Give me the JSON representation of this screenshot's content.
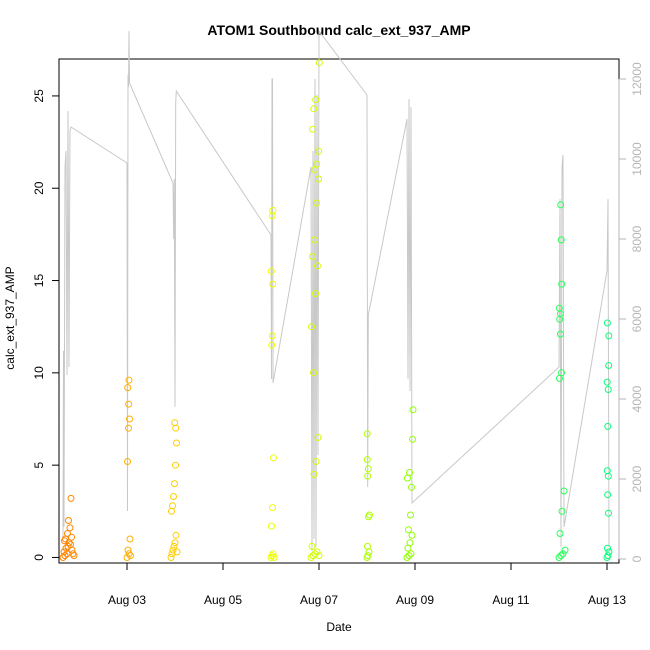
{
  "chart_data": {
    "type": "scatter",
    "title": "ATOM1 Southbound calc_ext_937_AMP",
    "xlabel": "Date",
    "ylabel": "calc_ext_937_AMP",
    "x_type": "date",
    "xlim": [
      "2024-08-01T14:00",
      "2024-08-13T06:00"
    ],
    "ylim": [
      -0.3,
      27.0
    ],
    "x_ticks": [
      "Aug 03",
      "Aug 05",
      "Aug 07",
      "Aug 09",
      "Aug 11",
      "Aug 13"
    ],
    "x_tick_dates": [
      "2024-08-03",
      "2024-08-05",
      "2024-08-07",
      "2024-08-09",
      "2024-08-11",
      "2024-08-13"
    ],
    "y_ticks": [
      0,
      5,
      10,
      15,
      20,
      25
    ],
    "y2_ticks": [
      0,
      2000,
      4000,
      6000,
      8000,
      10000,
      12000
    ],
    "y2lim": [
      -100,
      12500
    ],
    "grid": false,
    "legend": "none",
    "colors": {
      "line": "#c8c8c8",
      "right_axis": "#b5b5b5",
      "gradient": [
        "#ff7f00",
        "#ffff00",
        "#80ff00",
        "#00ff80"
      ]
    },
    "points": [
      {
        "x": "2024-08-01T16:00",
        "y": 0.0
      },
      {
        "x": "2024-08-01T17:00",
        "y": 0.1
      },
      {
        "x": "2024-08-01T18:00",
        "y": 0.2
      },
      {
        "x": "2024-08-01T16:30",
        "y": 0.3
      },
      {
        "x": "2024-08-01T17:30",
        "y": 0.5
      },
      {
        "x": "2024-08-01T18:30",
        "y": 0.6
      },
      {
        "x": "2024-08-01T19:00",
        "y": 0.8
      },
      {
        "x": "2024-08-01T17:15",
        "y": 1.0
      },
      {
        "x": "2024-08-01T18:15",
        "y": 1.3
      },
      {
        "x": "2024-08-01T19:30",
        "y": 1.6
      },
      {
        "x": "2024-08-01T18:45",
        "y": 2.0
      },
      {
        "x": "2024-08-01T20:00",
        "y": 3.2
      },
      {
        "x": "2024-08-01T20:30",
        "y": 0.4
      },
      {
        "x": "2024-08-01T21:00",
        "y": 0.2
      },
      {
        "x": "2024-08-01T19:45",
        "y": 0.7
      },
      {
        "x": "2024-08-01T16:45",
        "y": 0.9
      },
      {
        "x": "2024-08-01T21:30",
        "y": 0.1
      },
      {
        "x": "2024-08-01T20:15",
        "y": 1.1
      },
      {
        "x": "2024-08-03T00:00",
        "y": 0.0
      },
      {
        "x": "2024-08-03T01:00",
        "y": 0.2
      },
      {
        "x": "2024-08-03T00:30",
        "y": 0.4
      },
      {
        "x": "2024-08-03T01:30",
        "y": 1.0
      },
      {
        "x": "2024-08-03T00:15",
        "y": 5.2
      },
      {
        "x": "2024-08-03T00:45",
        "y": 7.0
      },
      {
        "x": "2024-08-03T01:15",
        "y": 7.5
      },
      {
        "x": "2024-08-03T00:50",
        "y": 8.3
      },
      {
        "x": "2024-08-03T00:20",
        "y": 9.2
      },
      {
        "x": "2024-08-03T01:00",
        "y": 9.6
      },
      {
        "x": "2024-08-03T01:45",
        "y": 0.1
      },
      {
        "x": "2024-08-03T22:00",
        "y": 0.0
      },
      {
        "x": "2024-08-03T22:30",
        "y": 0.2
      },
      {
        "x": "2024-08-03T23:00",
        "y": 0.4
      },
      {
        "x": "2024-08-03T23:30",
        "y": 0.6
      },
      {
        "x": "2024-08-04T00:00",
        "y": 0.8
      },
      {
        "x": "2024-08-04T00:30",
        "y": 1.2
      },
      {
        "x": "2024-08-03T22:15",
        "y": 2.5
      },
      {
        "x": "2024-08-03T22:45",
        "y": 2.8
      },
      {
        "x": "2024-08-03T23:15",
        "y": 3.3
      },
      {
        "x": "2024-08-03T23:45",
        "y": 4.0
      },
      {
        "x": "2024-08-04T00:15",
        "y": 5.0
      },
      {
        "x": "2024-08-04T00:45",
        "y": 6.2
      },
      {
        "x": "2024-08-04T00:20",
        "y": 7.0
      },
      {
        "x": "2024-08-03T23:50",
        "y": 7.3
      },
      {
        "x": "2024-08-04T01:00",
        "y": 0.3
      },
      {
        "x": "2024-08-06T00:00",
        "y": 0.0
      },
      {
        "x": "2024-08-06T00:30",
        "y": 0.1
      },
      {
        "x": "2024-08-06T01:00",
        "y": 0.2
      },
      {
        "x": "2024-08-06T00:15",
        "y": 1.7
      },
      {
        "x": "2024-08-06T00:45",
        "y": 2.7
      },
      {
        "x": "2024-08-06T01:15",
        "y": 5.4
      },
      {
        "x": "2024-08-06T00:20",
        "y": 11.5
      },
      {
        "x": "2024-08-06T00:40",
        "y": 12.0
      },
      {
        "x": "2024-08-06T00:50",
        "y": 14.8
      },
      {
        "x": "2024-08-06T00:10",
        "y": 15.5
      },
      {
        "x": "2024-08-06T00:35",
        "y": 18.5
      },
      {
        "x": "2024-08-06T00:55",
        "y": 18.8
      },
      {
        "x": "2024-08-06T01:30",
        "y": 0.0
      },
      {
        "x": "2024-08-06T20:00",
        "y": 0.0
      },
      {
        "x": "2024-08-06T21:00",
        "y": 0.1
      },
      {
        "x": "2024-08-06T22:00",
        "y": 0.2
      },
      {
        "x": "2024-08-06T23:00",
        "y": 0.3
      },
      {
        "x": "2024-08-07T00:00",
        "y": 0.1
      },
      {
        "x": "2024-08-06T20:30",
        "y": 0.6
      },
      {
        "x": "2024-08-06T21:30",
        "y": 4.5
      },
      {
        "x": "2024-08-06T22:30",
        "y": 5.2
      },
      {
        "x": "2024-08-06T23:30",
        "y": 6.5
      },
      {
        "x": "2024-08-06T21:15",
        "y": 10.0
      },
      {
        "x": "2024-08-06T20:15",
        "y": 12.5
      },
      {
        "x": "2024-08-06T22:15",
        "y": 14.3
      },
      {
        "x": "2024-08-06T23:15",
        "y": 15.8
      },
      {
        "x": "2024-08-06T20:45",
        "y": 16.3
      },
      {
        "x": "2024-08-06T21:45",
        "y": 17.2
      },
      {
        "x": "2024-08-06T22:45",
        "y": 19.2
      },
      {
        "x": "2024-08-06T23:45",
        "y": 20.5
      },
      {
        "x": "2024-08-06T21:50",
        "y": 21.0
      },
      {
        "x": "2024-08-06T22:50",
        "y": 21.3
      },
      {
        "x": "2024-08-06T20:50",
        "y": 23.2
      },
      {
        "x": "2024-08-06T21:20",
        "y": 24.3
      },
      {
        "x": "2024-08-06T22:20",
        "y": 24.8
      },
      {
        "x": "2024-08-07T00:10",
        "y": 26.8
      },
      {
        "x": "2024-08-06T23:50",
        "y": 22.0
      },
      {
        "x": "2024-08-08T00:00",
        "y": 0.0
      },
      {
        "x": "2024-08-08T00:30",
        "y": 0.1
      },
      {
        "x": "2024-08-08T01:00",
        "y": 0.3
      },
      {
        "x": "2024-08-08T00:15",
        "y": 0.6
      },
      {
        "x": "2024-08-08T00:45",
        "y": 2.2
      },
      {
        "x": "2024-08-08T01:15",
        "y": 2.3
      },
      {
        "x": "2024-08-08T00:20",
        "y": 4.4
      },
      {
        "x": "2024-08-08T00:40",
        "y": 4.8
      },
      {
        "x": "2024-08-08T00:10",
        "y": 5.3
      },
      {
        "x": "2024-08-08T00:05",
        "y": 6.7
      },
      {
        "x": "2024-08-08T20:00",
        "y": 0.0
      },
      {
        "x": "2024-08-08T21:00",
        "y": 0.1
      },
      {
        "x": "2024-08-08T22:00",
        "y": 0.2
      },
      {
        "x": "2024-08-08T20:30",
        "y": 0.5
      },
      {
        "x": "2024-08-08T21:30",
        "y": 0.8
      },
      {
        "x": "2024-08-08T22:30",
        "y": 1.2
      },
      {
        "x": "2024-08-08T20:45",
        "y": 1.5
      },
      {
        "x": "2024-08-08T21:45",
        "y": 2.3
      },
      {
        "x": "2024-08-08T22:15",
        "y": 3.8
      },
      {
        "x": "2024-08-08T20:15",
        "y": 4.3
      },
      {
        "x": "2024-08-08T21:15",
        "y": 4.6
      },
      {
        "x": "2024-08-08T22:45",
        "y": 6.4
      },
      {
        "x": "2024-08-08T23:00",
        "y": 8.0
      },
      {
        "x": "2024-08-12T00:00",
        "y": 0.0
      },
      {
        "x": "2024-08-12T01:00",
        "y": 0.1
      },
      {
        "x": "2024-08-12T02:00",
        "y": 0.2
      },
      {
        "x": "2024-08-12T03:00",
        "y": 0.4
      },
      {
        "x": "2024-08-12T00:30",
        "y": 1.3
      },
      {
        "x": "2024-08-12T01:30",
        "y": 2.5
      },
      {
        "x": "2024-08-12T02:30",
        "y": 3.6
      },
      {
        "x": "2024-08-12T00:15",
        "y": 9.7
      },
      {
        "x": "2024-08-12T01:15",
        "y": 10.0
      },
      {
        "x": "2024-08-12T00:45",
        "y": 12.1
      },
      {
        "x": "2024-08-12T00:20",
        "y": 12.9
      },
      {
        "x": "2024-08-12T00:40",
        "y": 13.2
      },
      {
        "x": "2024-08-12T00:10",
        "y": 13.5
      },
      {
        "x": "2024-08-12T01:20",
        "y": 14.8
      },
      {
        "x": "2024-08-12T01:10",
        "y": 17.2
      },
      {
        "x": "2024-08-12T00:50",
        "y": 19.1
      },
      {
        "x": "2024-08-13T00:00",
        "y": 0.0
      },
      {
        "x": "2024-08-13T00:30",
        "y": 0.1
      },
      {
        "x": "2024-08-13T01:00",
        "y": 0.3
      },
      {
        "x": "2024-08-13T00:15",
        "y": 0.5
      },
      {
        "x": "2024-08-13T00:45",
        "y": 2.4
      },
      {
        "x": "2024-08-13T00:20",
        "y": 3.4
      },
      {
        "x": "2024-08-13T00:40",
        "y": 4.4
      },
      {
        "x": "2024-08-13T00:10",
        "y": 4.7
      },
      {
        "x": "2024-08-13T00:25",
        "y": 7.1
      },
      {
        "x": "2024-08-13T00:35",
        "y": 9.1
      },
      {
        "x": "2024-08-13T00:05",
        "y": 9.5
      },
      {
        "x": "2024-08-13T00:50",
        "y": 10.4
      },
      {
        "x": "2024-08-13T00:55",
        "y": 12.0
      },
      {
        "x": "2024-08-13T00:12",
        "y": 12.7
      }
    ],
    "y2_series": [
      {
        "x": "2024-08-01T16:00",
        "y": 500
      },
      {
        "x": "2024-08-01T16:15",
        "y": 5200
      },
      {
        "x": "2024-08-01T16:30",
        "y": 800
      },
      {
        "x": "2024-08-01T17:00",
        "y": 9800
      },
      {
        "x": "2024-08-01T17:30",
        "y": 10200
      },
      {
        "x": "2024-08-01T18:00",
        "y": 4600
      },
      {
        "x": "2024-08-01T18:30",
        "y": 11200
      },
      {
        "x": "2024-08-01T19:00",
        "y": 4800
      },
      {
        "x": "2024-08-01T19:30",
        "y": 10700
      },
      {
        "x": "2024-08-01T20:00",
        "y": 10800
      },
      {
        "x": "2024-08-03T00:00",
        "y": 9900
      },
      {
        "x": "2024-08-03T00:15",
        "y": 1200
      },
      {
        "x": "2024-08-03T00:30",
        "y": 12100
      },
      {
        "x": "2024-08-03T00:45",
        "y": 11800
      },
      {
        "x": "2024-08-03T01:00",
        "y": 13200
      },
      {
        "x": "2024-08-03T01:15",
        "y": 11900
      },
      {
        "x": "2024-08-03T23:00",
        "y": 9400
      },
      {
        "x": "2024-08-03T23:20",
        "y": 8000
      },
      {
        "x": "2024-08-03T23:40",
        "y": 9500
      },
      {
        "x": "2024-08-04T00:00",
        "y": 3800
      },
      {
        "x": "2024-08-04T00:20",
        "y": 11400
      },
      {
        "x": "2024-08-04T00:40",
        "y": 11700
      },
      {
        "x": "2024-08-06T00:00",
        "y": 8100
      },
      {
        "x": "2024-08-06T00:15",
        "y": 4500
      },
      {
        "x": "2024-08-06T00:30",
        "y": 12000
      },
      {
        "x": "2024-08-06T00:45",
        "y": 12000
      },
      {
        "x": "2024-08-06T01:00",
        "y": 4400
      },
      {
        "x": "2024-08-06T20:00",
        "y": 9800
      },
      {
        "x": "2024-08-06T20:30",
        "y": 200
      },
      {
        "x": "2024-08-06T21:00",
        "y": 10200
      },
      {
        "x": "2024-08-06T21:30",
        "y": 500
      },
      {
        "x": "2024-08-06T22:00",
        "y": 12000
      },
      {
        "x": "2024-08-06T22:30",
        "y": 300
      },
      {
        "x": "2024-08-06T23:00",
        "y": 11600
      },
      {
        "x": "2024-08-06T23:30",
        "y": 2600
      },
      {
        "x": "2024-08-07T00:00",
        "y": 13200
      },
      {
        "x": "2024-08-08T00:00",
        "y": 11600
      },
      {
        "x": "2024-08-08T00:20",
        "y": 1800
      },
      {
        "x": "2024-08-08T00:40",
        "y": 6100
      },
      {
        "x": "2024-08-08T20:00",
        "y": 11000
      },
      {
        "x": "2024-08-08T20:30",
        "y": 4500
      },
      {
        "x": "2024-08-08T21:00",
        "y": 11500
      },
      {
        "x": "2024-08-08T21:30",
        "y": 4200
      },
      {
        "x": "2024-08-08T22:00",
        "y": 11300
      },
      {
        "x": "2024-08-08T22:30",
        "y": 1400
      },
      {
        "x": "2024-08-12T00:00",
        "y": 4800
      },
      {
        "x": "2024-08-12T00:30",
        "y": 9000
      },
      {
        "x": "2024-08-12T01:00",
        "y": 300
      },
      {
        "x": "2024-08-12T01:30",
        "y": 9800
      },
      {
        "x": "2024-08-12T02:00",
        "y": 10100
      },
      {
        "x": "2024-08-12T02:30",
        "y": 800
      },
      {
        "x": "2024-08-13T00:00",
        "y": 7200
      },
      {
        "x": "2024-08-13T00:30",
        "y": 9000
      },
      {
        "x": "2024-08-13T01:00",
        "y": 300
      }
    ]
  }
}
